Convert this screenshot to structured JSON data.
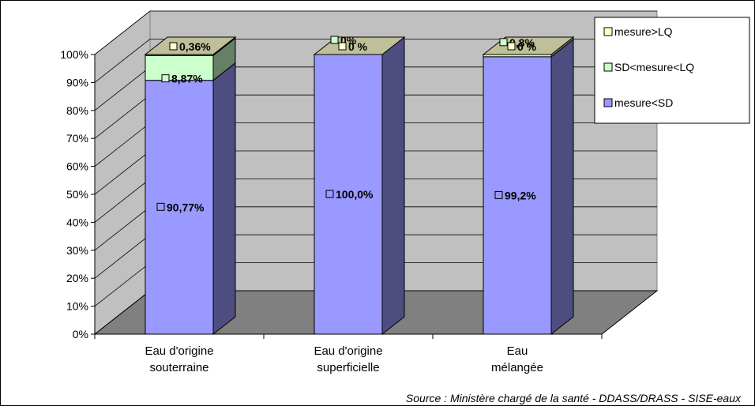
{
  "chart_data": {
    "type": "bar",
    "stacked": true,
    "three_d": true,
    "categories": [
      "Eau d'origine\nsouterraine",
      "Eau d'origine\nsuperficielle",
      "Eau\nmélangée"
    ],
    "series": [
      {
        "name": "mesure<SD",
        "values": [
          90.77,
          100.0,
          99.2
        ],
        "labels": [
          "90,77%",
          "100,0%",
          "99,2%"
        ],
        "color": "#9999ff"
      },
      {
        "name": "SD<mesure<LQ",
        "values": [
          8.87,
          0,
          0.8
        ],
        "labels": [
          "8,87%",
          "0%",
          "0,8%"
        ],
        "color": "#ccffcc"
      },
      {
        "name": "mesure>LQ",
        "values": [
          0.36,
          0,
          0
        ],
        "labels": [
          "0,36%",
          "0 %",
          "0 %"
        ],
        "color": "#ffffcc"
      }
    ],
    "y_ticks": [
      "0%",
      "10%",
      "20%",
      "30%",
      "40%",
      "50%",
      "60%",
      "70%",
      "80%",
      "90%",
      "100%"
    ],
    "ylim": [
      0,
      100
    ],
    "grid": true,
    "legend_position": "top-right",
    "legend_order": [
      "mesure>LQ",
      "SD<mesure<LQ",
      "mesure<SD"
    ]
  },
  "colors": {
    "wall": "#c0c0c0",
    "floor": "#808080",
    "blue_side": "#4d4d80",
    "green_side": "#668066",
    "top_face": "#bfbf99"
  },
  "source_note": "Source : Ministère chargé de la santé - DDASS/DRASS - SISE-eaux"
}
